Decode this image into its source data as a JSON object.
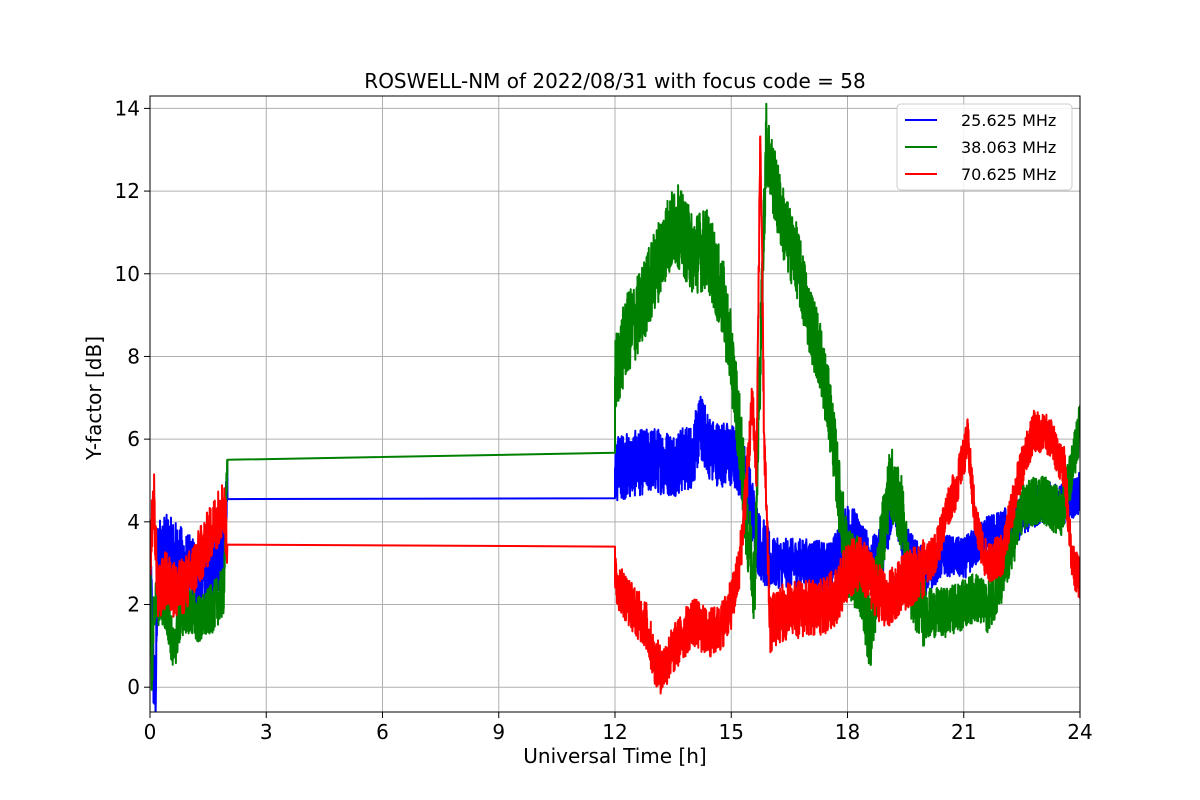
{
  "chart_data": {
    "type": "line",
    "title": "ROSWELL-NM of 2022/08/31 with focus code = 58",
    "xlabel": "Universal Time [h]",
    "ylabel": "Y-factor [dB]",
    "xlim": [
      0,
      24
    ],
    "ylim": [
      -0.6,
      14.3
    ],
    "xticks": [
      0,
      3,
      6,
      9,
      12,
      15,
      18,
      21,
      24
    ],
    "yticks": [
      0,
      2,
      4,
      6,
      8,
      10,
      12,
      14
    ],
    "grid": true,
    "legend_position": "top-right",
    "series": [
      {
        "name": "25.625 MHz",
        "color": "#0000ff",
        "noise": [
          0.9,
          0.0,
          0.8,
          0.6,
          0.5
        ],
        "points": [
          [
            0.0,
            3.0
          ],
          [
            0.05,
            1.8
          ],
          [
            0.1,
            0.0
          ],
          [
            0.15,
            0.0
          ],
          [
            0.2,
            3.2
          ],
          [
            0.4,
            3.3
          ],
          [
            0.7,
            3.1
          ],
          [
            1.0,
            2.8
          ],
          [
            1.3,
            2.7
          ],
          [
            1.6,
            3.0
          ],
          [
            1.9,
            3.4
          ],
          [
            2.0,
            4.55
          ],
          [
            12.0,
            4.57
          ],
          [
            12.0,
            5.3
          ],
          [
            12.5,
            5.4
          ],
          [
            13.0,
            5.5
          ],
          [
            13.5,
            5.4
          ],
          [
            14.0,
            5.6
          ],
          [
            14.2,
            6.3
          ],
          [
            14.5,
            5.7
          ],
          [
            15.0,
            5.6
          ],
          [
            15.3,
            5.3
          ],
          [
            15.5,
            4.5
          ],
          [
            15.7,
            3.5
          ],
          [
            16.0,
            3.0
          ],
          [
            16.5,
            3.0
          ],
          [
            17.0,
            3.0
          ],
          [
            17.5,
            2.9
          ],
          [
            17.8,
            3.3
          ],
          [
            18.0,
            3.9
          ],
          [
            18.3,
            3.6
          ],
          [
            18.6,
            3.0
          ],
          [
            18.9,
            3.3
          ],
          [
            19.2,
            4.6
          ],
          [
            19.5,
            3.3
          ],
          [
            20.0,
            2.7
          ],
          [
            20.5,
            3.2
          ],
          [
            21.0,
            3.1
          ],
          [
            21.5,
            3.6
          ],
          [
            22.0,
            3.8
          ],
          [
            22.5,
            4.1
          ],
          [
            23.0,
            4.5
          ],
          [
            23.5,
            4.4
          ],
          [
            24.0,
            4.7
          ]
        ]
      },
      {
        "name": "38.063 MHz",
        "color": "#008000",
        "noise": [
          0.6,
          0.0,
          1.0,
          0.9,
          0.6
        ],
        "points": [
          [
            0.0,
            3.6
          ],
          [
            0.05,
            0.0
          ],
          [
            0.1,
            2.0
          ],
          [
            0.3,
            2.1
          ],
          [
            0.5,
            1.6
          ],
          [
            0.6,
            0.8
          ],
          [
            0.8,
            1.8
          ],
          [
            1.0,
            1.9
          ],
          [
            1.3,
            1.6
          ],
          [
            1.6,
            1.9
          ],
          [
            1.9,
            2.3
          ],
          [
            2.0,
            5.5
          ],
          [
            12.0,
            5.67
          ],
          [
            12.0,
            7.5
          ],
          [
            12.3,
            8.5
          ],
          [
            12.6,
            9.0
          ],
          [
            13.0,
            10.0
          ],
          [
            13.3,
            10.8
          ],
          [
            13.6,
            11.2
          ],
          [
            14.0,
            10.5
          ],
          [
            14.4,
            10.6
          ],
          [
            14.8,
            9.3
          ],
          [
            15.0,
            8.0
          ],
          [
            15.2,
            6.3
          ],
          [
            15.4,
            4.0
          ],
          [
            15.6,
            2.5
          ],
          [
            15.75,
            8.0
          ],
          [
            15.9,
            13.2
          ],
          [
            16.1,
            12.2
          ],
          [
            16.4,
            11.0
          ],
          [
            16.7,
            10.3
          ],
          [
            17.0,
            9.0
          ],
          [
            17.3,
            8.0
          ],
          [
            17.6,
            6.3
          ],
          [
            17.8,
            4.5
          ],
          [
            18.0,
            3.0
          ],
          [
            18.3,
            2.7
          ],
          [
            18.6,
            1.2
          ],
          [
            18.8,
            2.9
          ],
          [
            19.1,
            5.0
          ],
          [
            19.4,
            4.2
          ],
          [
            19.6,
            2.5
          ],
          [
            20.0,
            1.8
          ],
          [
            20.5,
            1.8
          ],
          [
            21.0,
            2.0
          ],
          [
            21.3,
            2.2
          ],
          [
            21.6,
            1.9
          ],
          [
            22.0,
            2.6
          ],
          [
            22.5,
            4.3
          ],
          [
            23.0,
            4.6
          ],
          [
            23.5,
            4.2
          ],
          [
            23.8,
            5.3
          ],
          [
            24.0,
            6.3
          ]
        ]
      },
      {
        "name": "70.625 MHz",
        "color": "#ff0000",
        "noise": [
          0.7,
          0.0,
          0.6,
          0.7,
          0.5
        ],
        "points": [
          [
            0.0,
            3.2
          ],
          [
            0.1,
            4.6
          ],
          [
            0.2,
            2.2
          ],
          [
            0.4,
            2.6
          ],
          [
            0.7,
            2.3
          ],
          [
            1.0,
            2.6
          ],
          [
            1.3,
            3.2
          ],
          [
            1.6,
            3.8
          ],
          [
            1.9,
            4.4
          ],
          [
            2.0,
            3.45
          ],
          [
            12.0,
            3.4
          ],
          [
            12.0,
            2.6
          ],
          [
            12.4,
            2.0
          ],
          [
            12.8,
            1.5
          ],
          [
            13.0,
            0.7
          ],
          [
            13.2,
            0.4
          ],
          [
            13.5,
            0.9
          ],
          [
            13.8,
            1.3
          ],
          [
            14.0,
            1.6
          ],
          [
            14.4,
            1.3
          ],
          [
            14.7,
            1.4
          ],
          [
            15.0,
            2.0
          ],
          [
            15.2,
            2.8
          ],
          [
            15.4,
            5.0
          ],
          [
            15.55,
            7.0
          ],
          [
            15.65,
            5.0
          ],
          [
            15.75,
            13.5
          ],
          [
            15.85,
            6.0
          ],
          [
            16.0,
            1.5
          ],
          [
            16.3,
            1.8
          ],
          [
            16.8,
            1.9
          ],
          [
            17.3,
            1.9
          ],
          [
            17.7,
            2.2
          ],
          [
            18.0,
            2.8
          ],
          [
            18.3,
            3.0
          ],
          [
            18.6,
            2.6
          ],
          [
            19.0,
            2.0
          ],
          [
            19.3,
            2.4
          ],
          [
            19.7,
            2.7
          ],
          [
            20.0,
            2.9
          ],
          [
            20.3,
            3.3
          ],
          [
            20.6,
            4.4
          ],
          [
            20.8,
            4.8
          ],
          [
            21.1,
            6.0
          ],
          [
            21.3,
            4.0
          ],
          [
            21.6,
            3.0
          ],
          [
            22.0,
            3.2
          ],
          [
            22.4,
            5.0
          ],
          [
            22.8,
            6.2
          ],
          [
            23.2,
            6.1
          ],
          [
            23.6,
            5.3
          ],
          [
            23.8,
            3.0
          ],
          [
            24.0,
            2.6
          ]
        ]
      }
    ]
  }
}
